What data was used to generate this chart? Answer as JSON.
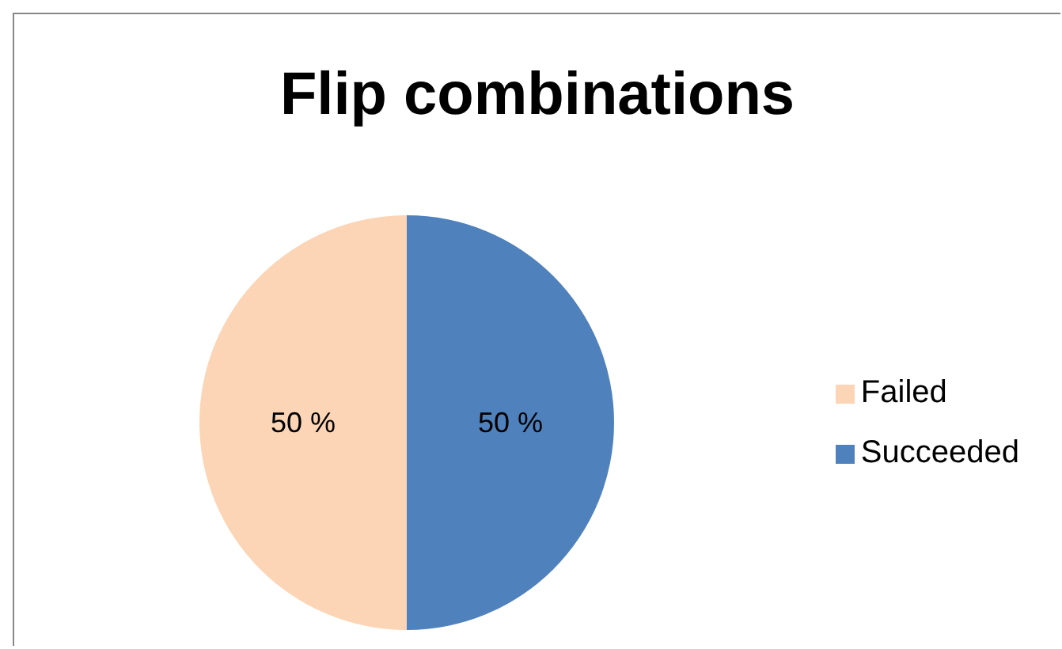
{
  "chart_data": {
    "type": "pie",
    "title": "Flip combinations",
    "categories": [
      "Succeeded",
      "Failed"
    ],
    "values": [
      50,
      50
    ],
    "colors": [
      "#4f81bd",
      "#fbd5b5"
    ],
    "value_labels": [
      "50 %",
      "50 %"
    ],
    "legend": "right"
  }
}
